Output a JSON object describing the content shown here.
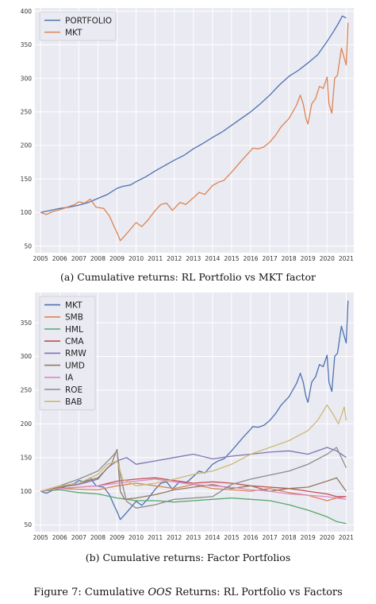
{
  "chart_data": [
    {
      "type": "line",
      "panel": "a",
      "title": "",
      "xlabel": "",
      "ylabel": "",
      "xlim": [
        2004.7,
        2021.4
      ],
      "ylim": [
        40,
        405
      ],
      "x_ticks": [
        "2005",
        "2006",
        "2007",
        "2008",
        "2009",
        "2010",
        "2011",
        "2012",
        "2013",
        "2014",
        "2015",
        "2016",
        "2017",
        "2018",
        "2019",
        "2020",
        "2021"
      ],
      "y_ticks": [
        50,
        100,
        150,
        200,
        250,
        300,
        350,
        400
      ],
      "grid": true,
      "legend": "top-left",
      "series": [
        {
          "name": "PORTFOLIO",
          "color": "#4c72b0",
          "x": [
            2005,
            2005.5,
            2006,
            2006.5,
            2007,
            2007.5,
            2008,
            2008.5,
            2009,
            2009.3,
            2009.7,
            2010,
            2010.5,
            2011,
            2011.5,
            2012,
            2012.5,
            2013,
            2013.5,
            2014,
            2014.5,
            2015,
            2015.5,
            2016,
            2016.5,
            2017,
            2017.5,
            2018,
            2018.5,
            2019,
            2019.5,
            2020,
            2020.3,
            2020.6,
            2020.8,
            2021
          ],
          "y": [
            100,
            103,
            106,
            108,
            111,
            115,
            121,
            127,
            136,
            139,
            141,
            146,
            153,
            162,
            170,
            178,
            185,
            195,
            203,
            212,
            220,
            230,
            240,
            250,
            262,
            275,
            290,
            303,
            312,
            323,
            335,
            355,
            368,
            382,
            393,
            390
          ]
        },
        {
          "name": "MKT",
          "color": "#dd8452",
          "x": [
            2005,
            2005.3,
            2005.6,
            2006,
            2006.4,
            2006.8,
            2007,
            2007.3,
            2007.6,
            2007.9,
            2008.3,
            2008.6,
            2008.8,
            2009,
            2009.17,
            2009.4,
            2009.7,
            2010,
            2010.3,
            2010.6,
            2011,
            2011.3,
            2011.6,
            2011.9,
            2012.3,
            2012.6,
            2013,
            2013.3,
            2013.6,
            2014,
            2014.3,
            2014.6,
            2015,
            2015.3,
            2015.6,
            2016,
            2016.1,
            2016.4,
            2016.7,
            2017,
            2017.3,
            2017.6,
            2018,
            2018.2,
            2018.4,
            2018.6,
            2018.75,
            2018.9,
            2019,
            2019.2,
            2019.4,
            2019.6,
            2019.8,
            2020,
            2020.1,
            2020.25,
            2020.4,
            2020.55,
            2020.75,
            2021,
            2021.1
          ],
          "y": [
            100,
            97,
            101,
            104,
            108,
            112,
            116,
            114,
            120,
            108,
            106,
            95,
            82,
            70,
            58,
            65,
            75,
            85,
            79,
            88,
            103,
            112,
            114,
            103,
            115,
            112,
            122,
            130,
            127,
            140,
            145,
            148,
            160,
            170,
            180,
            192,
            196,
            195,
            198,
            205,
            215,
            228,
            240,
            250,
            260,
            275,
            262,
            240,
            232,
            262,
            270,
            288,
            285,
            302,
            262,
            248,
            300,
            305,
            345,
            320,
            383
          ]
        }
      ]
    },
    {
      "type": "line",
      "panel": "b",
      "title": "",
      "xlabel": "",
      "ylabel": "",
      "xlim": [
        2004.7,
        2021.4
      ],
      "ylim": [
        40,
        395
      ],
      "x_ticks": [
        "2005",
        "2006",
        "2007",
        "2008",
        "2009",
        "2010",
        "2011",
        "2012",
        "2013",
        "2014",
        "2015",
        "2016",
        "2017",
        "2018",
        "2019",
        "2020",
        "2021"
      ],
      "y_ticks": [
        50,
        100,
        150,
        200,
        250,
        300,
        350
      ],
      "grid": true,
      "legend": "top-left",
      "series": [
        {
          "name": "MKT",
          "color": "#4c72b0",
          "x": [
            2005,
            2005.3,
            2005.6,
            2006,
            2006.4,
            2006.8,
            2007,
            2007.3,
            2007.6,
            2007.9,
            2008.3,
            2008.6,
            2008.8,
            2009,
            2009.17,
            2009.4,
            2009.7,
            2010,
            2010.3,
            2010.6,
            2011,
            2011.3,
            2011.6,
            2011.9,
            2012.3,
            2012.6,
            2013,
            2013.3,
            2013.6,
            2014,
            2014.3,
            2014.6,
            2015,
            2015.3,
            2015.6,
            2016,
            2016.1,
            2016.4,
            2016.7,
            2017,
            2017.3,
            2017.6,
            2018,
            2018.2,
            2018.4,
            2018.6,
            2018.75,
            2018.9,
            2019,
            2019.2,
            2019.4,
            2019.6,
            2019.8,
            2020,
            2020.1,
            2020.25,
            2020.4,
            2020.55,
            2020.75,
            2021,
            2021.1
          ],
          "y": [
            100,
            97,
            101,
            104,
            108,
            112,
            116,
            114,
            120,
            108,
            106,
            95,
            82,
            70,
            58,
            65,
            75,
            85,
            79,
            88,
            103,
            112,
            114,
            103,
            115,
            112,
            122,
            130,
            127,
            140,
            145,
            148,
            160,
            170,
            180,
            192,
            196,
            195,
            198,
            205,
            215,
            228,
            240,
            250,
            260,
            275,
            262,
            240,
            232,
            262,
            270,
            288,
            285,
            302,
            262,
            248,
            300,
            305,
            345,
            320,
            383
          ]
        },
        {
          "name": "SMB",
          "color": "#dd8452",
          "x": [
            2005,
            2006,
            2007,
            2008,
            2009,
            2010,
            2011,
            2012,
            2013,
            2014,
            2015,
            2016,
            2017,
            2018,
            2019,
            2020,
            2020.5,
            2021
          ],
          "y": [
            100,
            104,
            103,
            102,
            108,
            112,
            108,
            104,
            110,
            104,
            102,
            100,
            104,
            98,
            94,
            86,
            90,
            92
          ]
        },
        {
          "name": "HML",
          "color": "#55a868",
          "x": [
            2005,
            2006,
            2007,
            2008,
            2009,
            2010,
            2011,
            2012,
            2013,
            2014,
            2015,
            2016,
            2017,
            2018,
            2019,
            2020,
            2020.5,
            2021
          ],
          "y": [
            100,
            102,
            98,
            96,
            90,
            86,
            86,
            84,
            86,
            88,
            90,
            88,
            86,
            80,
            72,
            62,
            55,
            52
          ]
        },
        {
          "name": "CMA",
          "color": "#c44e52",
          "x": [
            2005,
            2006,
            2007,
            2008,
            2009,
            2010,
            2011,
            2012,
            2013,
            2014,
            2015,
            2016,
            2017,
            2018,
            2019,
            2020,
            2020.5,
            2021
          ],
          "y": [
            100,
            104,
            106,
            108,
            115,
            118,
            120,
            116,
            112,
            114,
            112,
            108,
            106,
            104,
            100,
            96,
            92,
            92
          ]
        },
        {
          "name": "RMW",
          "color": "#8172b3",
          "x": [
            2005,
            2006,
            2007,
            2008,
            2008.5,
            2009,
            2009.5,
            2010,
            2011,
            2012,
            2013,
            2014,
            2015,
            2016,
            2017,
            2018,
            2019,
            2020,
            2020.5,
            2021
          ],
          "y": [
            100,
            106,
            110,
            118,
            135,
            145,
            150,
            140,
            145,
            150,
            155,
            148,
            152,
            155,
            158,
            160,
            155,
            165,
            160,
            150
          ]
        },
        {
          "name": "UMD",
          "color": "#937860",
          "x": [
            2005,
            2006,
            2007,
            2008,
            2008.7,
            2009,
            2009.17,
            2009.4,
            2010,
            2011,
            2012,
            2013,
            2014,
            2015,
            2016,
            2017,
            2018,
            2019,
            2020,
            2020.5,
            2021
          ],
          "y": [
            100,
            106,
            112,
            120,
            140,
            162,
            100,
            88,
            90,
            95,
            102,
            106,
            110,
            104,
            108,
            100,
            104,
            106,
            115,
            120,
            100
          ]
        },
        {
          "name": "IA",
          "color": "#da8bc3",
          "x": [
            2005,
            2006,
            2007,
            2008,
            2009,
            2010,
            2011,
            2012,
            2013,
            2014,
            2015,
            2016,
            2017,
            2018,
            2019,
            2020,
            2020.5,
            2021
          ],
          "y": [
            100,
            104,
            106,
            108,
            112,
            115,
            118,
            114,
            110,
            108,
            106,
            102,
            100,
            96,
            94,
            92,
            90,
            88
          ]
        },
        {
          "name": "ROE",
          "color": "#8c8c8c",
          "x": [
            2005,
            2006,
            2007,
            2008,
            2008.7,
            2009,
            2009.2,
            2009.5,
            2010,
            2011,
            2012,
            2013,
            2014,
            2015,
            2016,
            2017,
            2018,
            2019,
            2020,
            2020.5,
            2021
          ],
          "y": [
            100,
            108,
            118,
            130,
            150,
            160,
            120,
            85,
            75,
            80,
            88,
            90,
            92,
            110,
            118,
            124,
            130,
            140,
            155,
            165,
            135
          ]
        },
        {
          "name": "BAB",
          "color": "#ccb974",
          "x": [
            2005,
            2006,
            2007,
            2008,
            2008.5,
            2009,
            2009.3,
            2010,
            2011,
            2012,
            2013,
            2014,
            2015,
            2016,
            2017,
            2018,
            2019,
            2019.5,
            2020,
            2020.3,
            2020.6,
            2020.9,
            2021
          ],
          "y": [
            100,
            108,
            112,
            125,
            140,
            145,
            118,
            108,
            112,
            118,
            125,
            130,
            140,
            155,
            165,
            175,
            190,
            205,
            228,
            215,
            200,
            225,
            205
          ]
        }
      ]
    }
  ],
  "captions": {
    "a": "(a) Cumulative returns: RL Portfolio vs MKT factor",
    "b": "(b) Cumulative returns: Factor Portfolios",
    "figure_prefix": "Figure 7: Cumulative ",
    "figure_italic": "OOS",
    "figure_suffix": " Returns: RL Portfolio vs Factors"
  }
}
